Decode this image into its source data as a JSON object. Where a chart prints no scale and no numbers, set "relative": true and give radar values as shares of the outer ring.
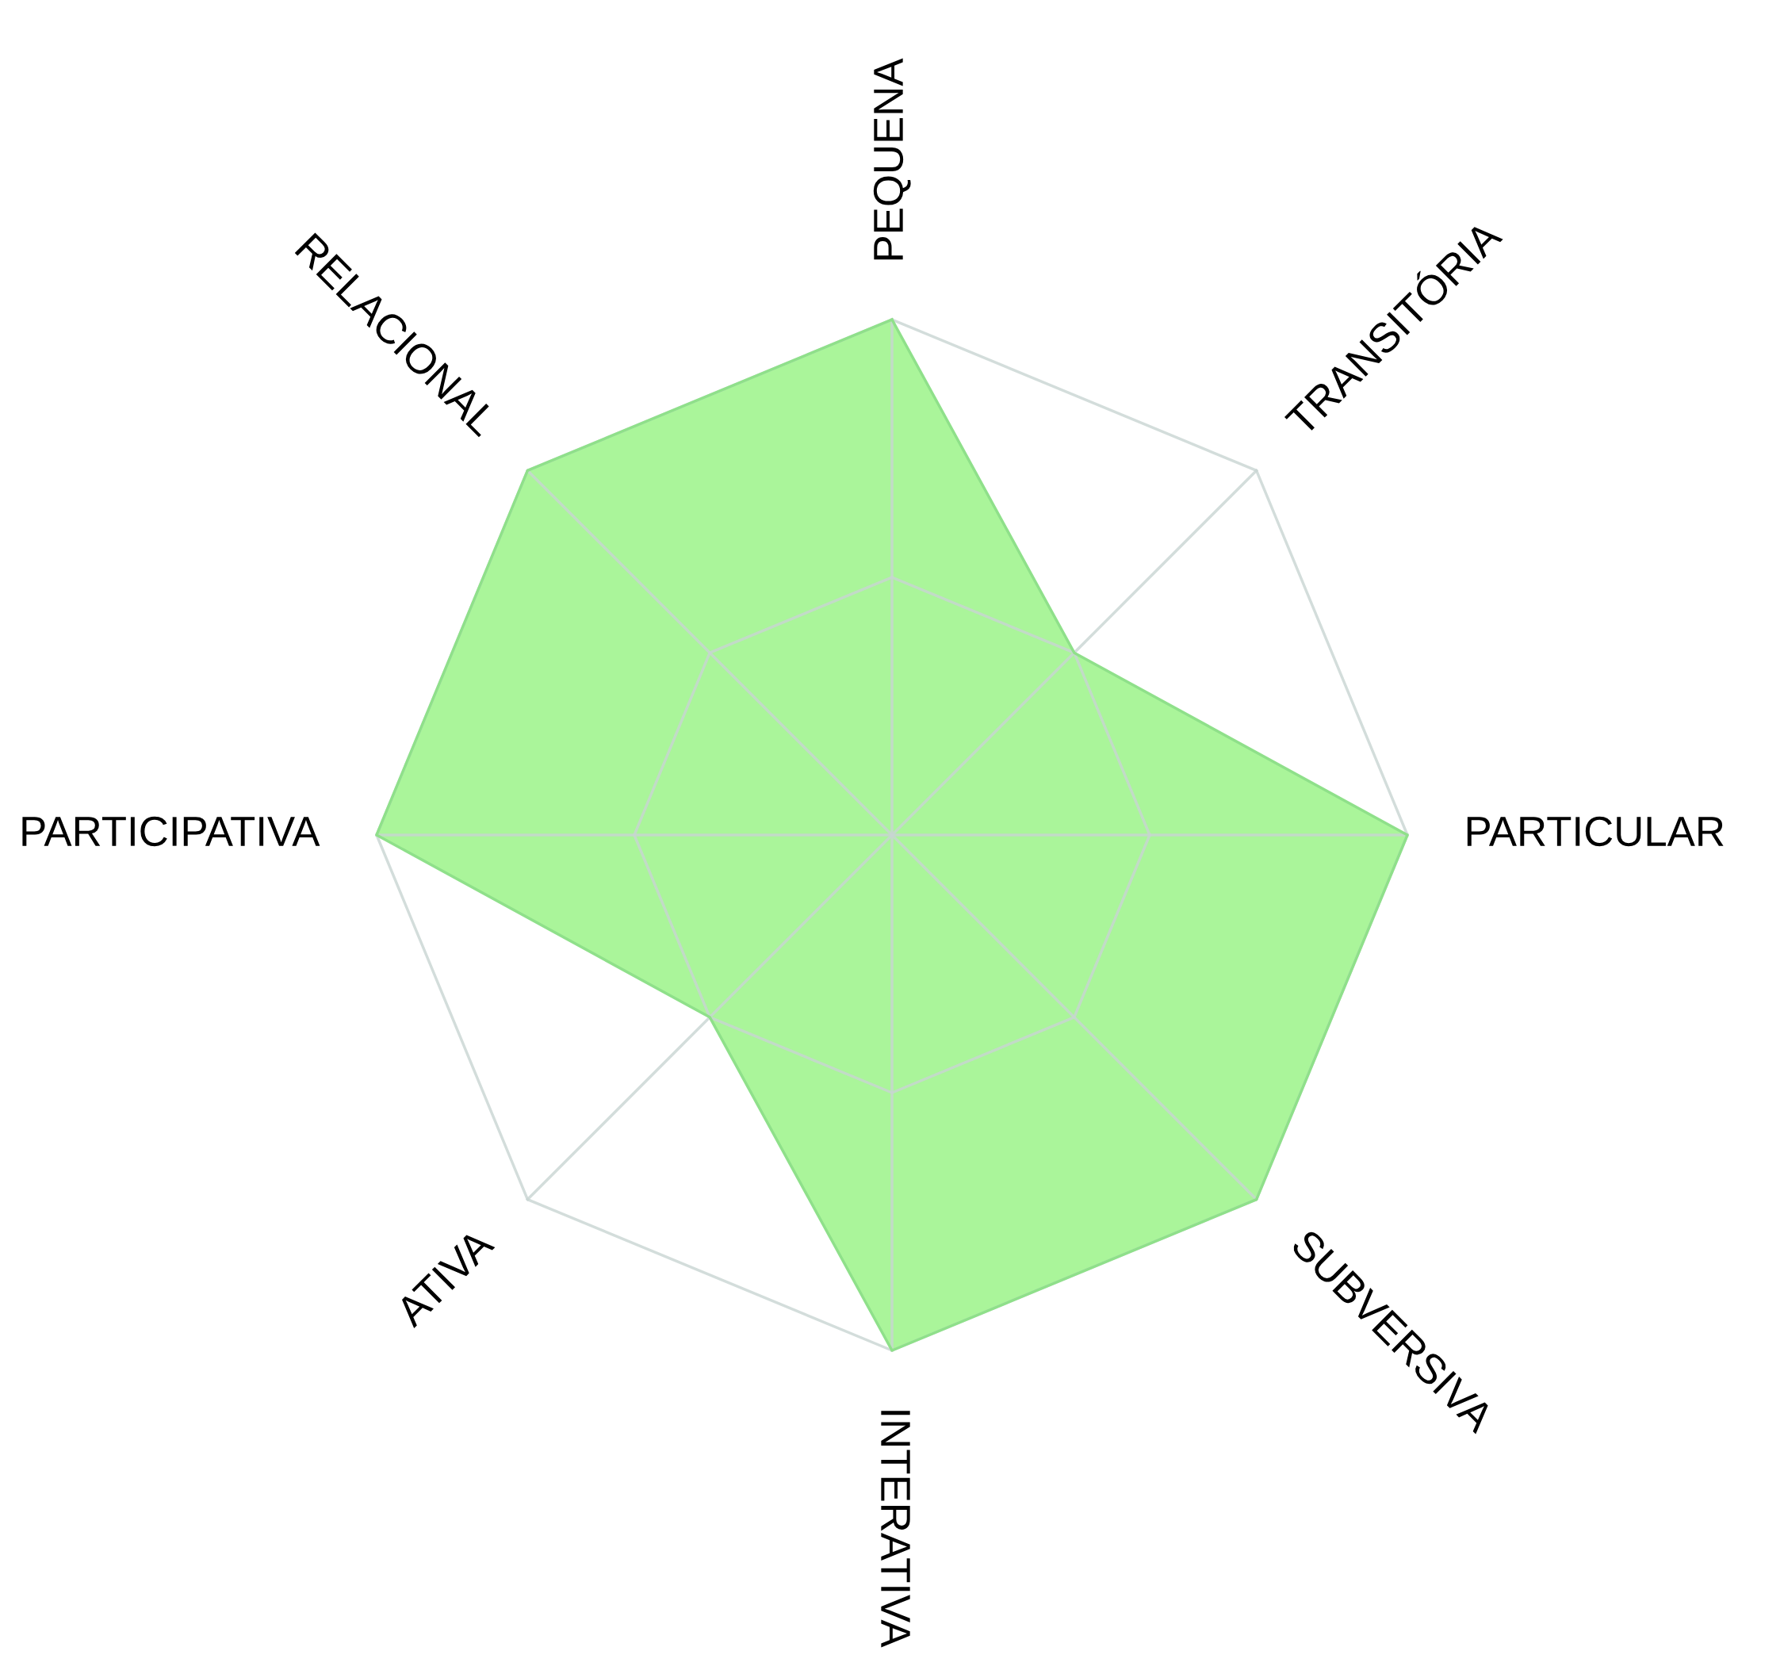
{
  "chart_data": {
    "type": "radar",
    "relative": true,
    "categories": [
      "PEQUENA",
      "TRANSITÓRIA",
      "PARTICULAR",
      "SUBVERSIVA",
      "INTERATIVA",
      "ATIVA",
      "PARTICIPATIVA",
      "RELACIONAL"
    ],
    "series": [
      {
        "color": "#aaf59a",
        "values": [
          1,
          0.5,
          1,
          1,
          1,
          0.5,
          1,
          1
        ]
      }
    ],
    "grid": true
  }
}
